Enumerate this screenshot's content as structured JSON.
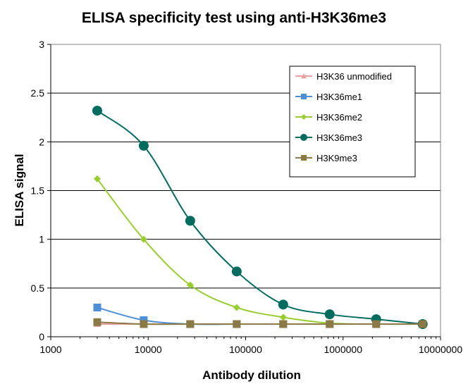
{
  "chart_data": {
    "type": "line",
    "title": "ELISA specificity test using anti-H3K36me3",
    "xlabel": "Antibody dilution",
    "ylabel": "ELISA signal",
    "x_scale": "log",
    "xlim": [
      1000,
      10000000
    ],
    "ylim": [
      0,
      3
    ],
    "x_ticks": [
      "1000",
      "10000",
      "100000",
      "1000000",
      "10000000"
    ],
    "y_ticks": [
      "0",
      "0.5",
      "1",
      "1.5",
      "2",
      "2.5",
      "3"
    ],
    "grid": "horizontal",
    "legend_position": "top-right",
    "x": [
      3000,
      9000,
      27000,
      81000,
      243000,
      729000,
      2187000,
      6561000
    ],
    "series": [
      {
        "name": "H3K36 unmodified",
        "marker": "triangle",
        "color": "#e8a0a0",
        "values": [
          0.13,
          0.13,
          0.13,
          0.13,
          0.13,
          0.13,
          0.13,
          0.13
        ]
      },
      {
        "name": "H3K36me1",
        "marker": "square",
        "color": "#4f8fd6",
        "values": [
          0.3,
          0.17,
          0.13,
          0.13,
          0.13,
          0.13,
          0.13,
          0.13
        ]
      },
      {
        "name": "H3K36me2",
        "marker": "diamond",
        "color": "#9acd32",
        "values": [
          1.62,
          1.0,
          0.53,
          0.3,
          0.2,
          0.14,
          0.13,
          0.13
        ]
      },
      {
        "name": "H3K36me3",
        "marker": "circle",
        "color": "#006b5f",
        "values": [
          2.32,
          1.96,
          1.19,
          0.67,
          0.33,
          0.23,
          0.18,
          0.13
        ]
      },
      {
        "name": "H3K9me3",
        "marker": "square",
        "color": "#8b7a45",
        "values": [
          0.15,
          0.13,
          0.13,
          0.13,
          0.13,
          0.13,
          0.13,
          0.13
        ]
      }
    ]
  }
}
